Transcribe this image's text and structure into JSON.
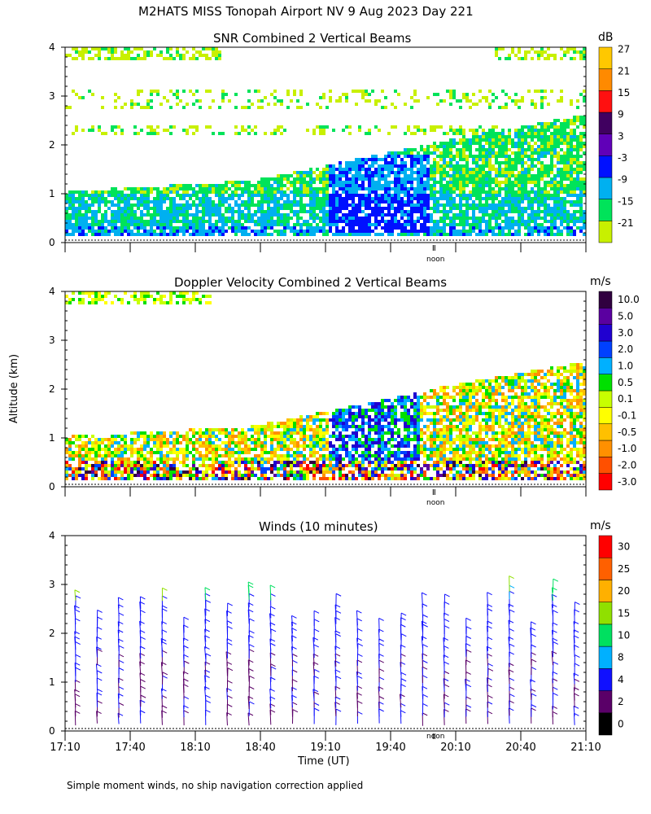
{
  "figure": {
    "title": "M2HATS MISS Tonopah Airport NV   9 Aug 2023 Day 221",
    "footer": "Simple moment winds, no ship navigation correction applied",
    "ylabel": "Altitude (km)",
    "xlabel": "Time (UT)",
    "noon_label": "noon"
  },
  "colors": {
    "snr": [
      "#c8f000",
      "#00e35a",
      "#00b0f0",
      "#0010ff",
      "#6000b8",
      "#400060",
      "#ff1010",
      "#ff8a00",
      "#ffc800"
    ],
    "doppler": [
      "#ff0000",
      "#ff5000",
      "#ff9000",
      "#ffc000",
      "#ffff00",
      "#c8ff00",
      "#00e000",
      "#00b0ff",
      "#0040ff",
      "#2000d0",
      "#5a00a0",
      "#300040"
    ],
    "winds": [
      "#000000",
      "#5a0068",
      "#1010ff",
      "#00b0ff",
      "#00e060",
      "#90e000",
      "#ffb000",
      "#ff6000",
      "#ff0000"
    ]
  },
  "chart_data": [
    {
      "type": "heatmap",
      "title": "SNR Combined 2 Vertical Beams",
      "unit": "dB",
      "xlim": [
        17.1667,
        21.1667
      ],
      "ylim": [
        0,
        4
      ],
      "xticks": [
        "17:10",
        "17:40",
        "18:10",
        "18:40",
        "19:10",
        "19:40",
        "20:10",
        "20:40",
        "21:10"
      ],
      "yticks": [
        0,
        1,
        2,
        3,
        4
      ],
      "colorbar": [
        "-21",
        "-15",
        "-9",
        "-3",
        "3",
        "9",
        "15",
        "21",
        "27"
      ],
      "noon_hour": 20.0
    },
    {
      "type": "heatmap",
      "title": "Doppler Velocity Combined 2 Vertical Beams",
      "unit": "m/s",
      "xlim": [
        17.1667,
        21.1667
      ],
      "ylim": [
        0,
        4
      ],
      "yticks": [
        0,
        1,
        2,
        3,
        4
      ],
      "colorbar": [
        "-3.0",
        "-2.0",
        "-1.0",
        "-0.5",
        "-0.1",
        "0.1",
        "0.5",
        "1.0",
        "2.0",
        "3.0",
        "5.0",
        "10.0"
      ],
      "noon_hour": 20.0
    },
    {
      "type": "scatter",
      "title": "Winds (10 minutes)",
      "unit": "m/s",
      "xlim": [
        17.1667,
        21.1667
      ],
      "ylim": [
        0,
        4
      ],
      "xticks": [
        "17:10",
        "17:40",
        "18:10",
        "18:40",
        "19:10",
        "19:40",
        "20:10",
        "20:40",
        "21:10"
      ],
      "yticks": [
        0,
        1,
        2,
        3,
        4
      ],
      "colorbar": [
        "0",
        "2",
        "4",
        "8",
        "10",
        "15",
        "20",
        "25",
        "30"
      ],
      "noon_hour": 20.0
    }
  ]
}
